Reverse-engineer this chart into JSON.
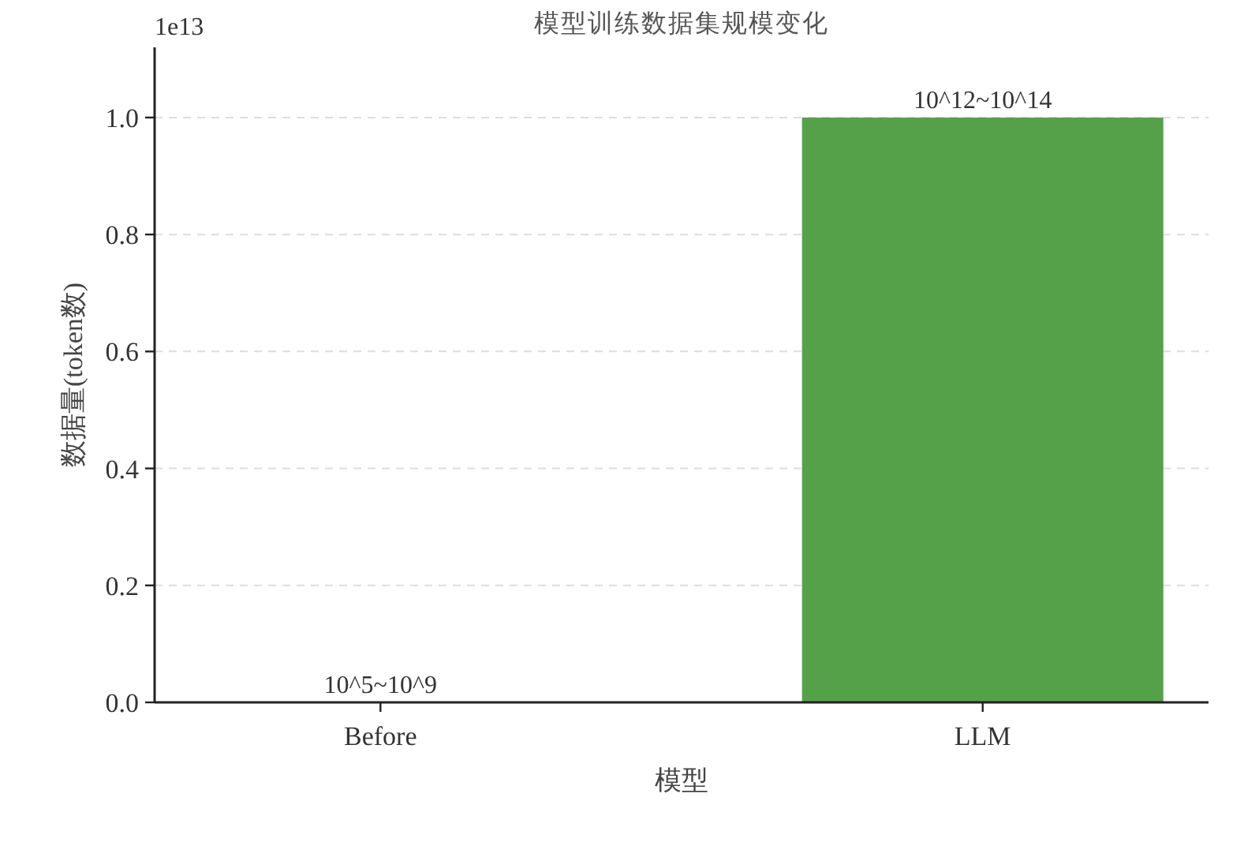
{
  "chart_data": {
    "type": "bar",
    "title": "模型训练数据集规模变化",
    "xlabel": "模型",
    "ylabel": "数据量(token数)",
    "categories": [
      "Before",
      "LLM"
    ],
    "values": [
      0,
      1.0
    ],
    "colors": [
      "#4c72b0",
      "#55a14a"
    ],
    "ylim": [
      0,
      1.12
    ],
    "yticks": [
      {
        "value": 0,
        "label": "0.0"
      },
      {
        "value": 0.2,
        "label": "0.2"
      },
      {
        "value": 0.4,
        "label": "0.4"
      },
      {
        "value": 0.6,
        "label": "0.6"
      },
      {
        "value": 0.8,
        "label": "0.8"
      },
      {
        "value": 1.0,
        "label": "1.0"
      }
    ],
    "annotations": [
      "1e13",
      {
        "text": "10^5~10^9",
        "x": "Before",
        "y": 0
      },
      {
        "text": "10^12~10^14",
        "x": "LLM",
        "y": 1.0
      }
    ],
    "grid": "y"
  }
}
